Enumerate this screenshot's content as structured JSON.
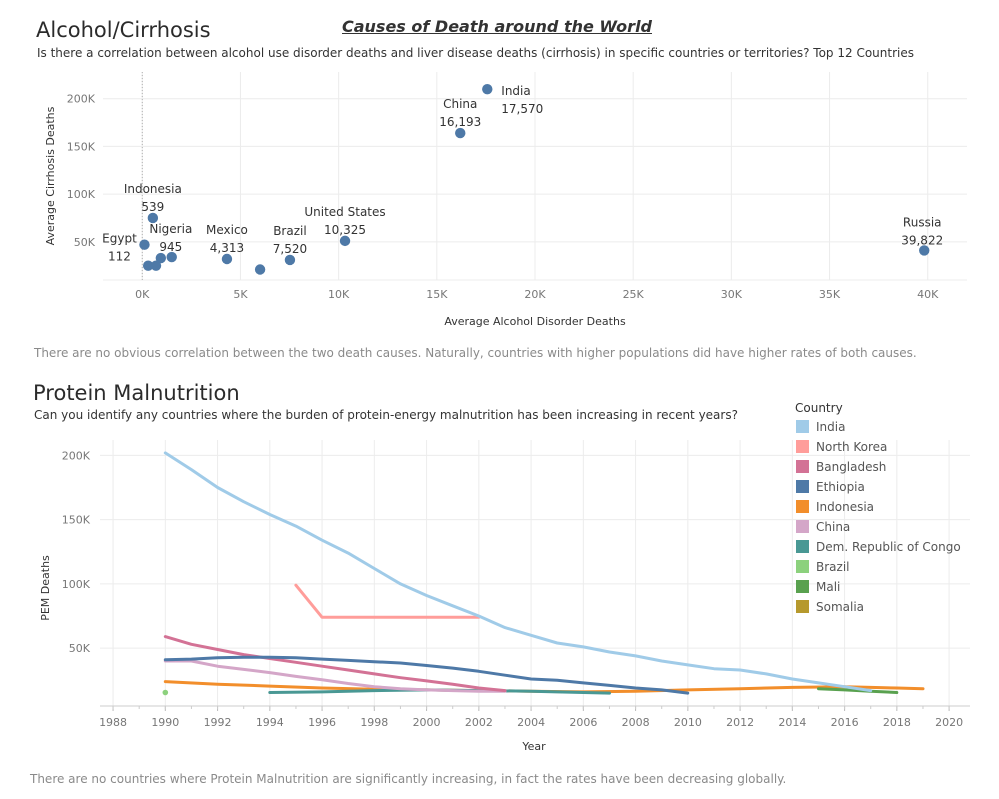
{
  "dashboard_title": "Causes of Death around the World",
  "scatter_section": {
    "title": "Alcohol/Cirrhosis",
    "subtitle": "Is there a correlation between alcohol use disorder deaths and liver disease deaths (cirrhosis) in specific countries or territories? Top 12 Countries",
    "note": "There are no obvious correlation between the two death causes. Naturally, countries with higher populations did have higher rates of both causes."
  },
  "line_section": {
    "title": "Protein Malnutrition",
    "subtitle": "Can you identify any countries where the burden of protein-energy malnutrition has been increasing in recent years?",
    "note": "There are no countries where Protein Malnutrition are significantly increasing, in fact the rates have been decreasing globally.",
    "legend_title": "Country"
  },
  "colors": {
    "scatter_point": "#4e79a7",
    "grid": "#ececec"
  },
  "chart_data": [
    {
      "type": "scatter",
      "xlabel": "Average Alcohol Disorder Deaths",
      "ylabel": "Average Cirrhosis Deaths",
      "xlim": [
        -2000,
        42000
      ],
      "ylim": [
        10000,
        228000
      ],
      "xticks": [
        0,
        5000,
        10000,
        15000,
        20000,
        25000,
        30000,
        35000,
        40000
      ],
      "xtick_labels": [
        "0K",
        "5K",
        "10K",
        "15K",
        "20K",
        "25K",
        "30K",
        "35K",
        "40K"
      ],
      "yticks": [
        50000,
        100000,
        150000,
        200000
      ],
      "ytick_labels": [
        "50K",
        "100K",
        "150K",
        "200K"
      ],
      "points": [
        {
          "name": "India",
          "value_label": "17,570",
          "x": 17570,
          "y": 210000
        },
        {
          "name": "China",
          "value_label": "16,193",
          "x": 16193,
          "y": 164000
        },
        {
          "name": "Russia",
          "value_label": "39,822",
          "x": 39822,
          "y": 41000
        },
        {
          "name": "United States",
          "value_label": "10,325",
          "x": 10325,
          "y": 51000
        },
        {
          "name": "Brazil",
          "value_label": "7,520",
          "x": 7520,
          "y": 31000
        },
        {
          "name": "Mexico",
          "value_label": "4,313",
          "x": 4313,
          "y": 32000
        },
        {
          "name": "Nigeria",
          "value_label": "945",
          "x": 945,
          "y": 33000
        },
        {
          "name": "Indonesia",
          "value_label": "539",
          "x": 539,
          "y": 75000
        },
        {
          "name": "Egypt",
          "value_label": "112",
          "x": 112,
          "y": 47000
        },
        {
          "name": "",
          "value_label": "",
          "x": 300,
          "y": 25000
        },
        {
          "name": "",
          "value_label": "",
          "x": 700,
          "y": 25000
        },
        {
          "name": "",
          "value_label": "",
          "x": 1500,
          "y": 34000
        },
        {
          "name": "",
          "value_label": "",
          "x": 6000,
          "y": 21000
        }
      ]
    },
    {
      "type": "line",
      "xlabel": "Year",
      "ylabel": "PEM Deaths",
      "xlim": [
        1987.5,
        2020.8
      ],
      "ylim": [
        5000,
        212000
      ],
      "xticks": [
        1988,
        1990,
        1992,
        1994,
        1996,
        1998,
        2000,
        2002,
        2004,
        2006,
        2008,
        2010,
        2012,
        2014,
        2016,
        2018,
        2020
      ],
      "yticks": [
        50000,
        100000,
        150000,
        200000
      ],
      "ytick_labels": [
        "50K",
        "100K",
        "150K",
        "200K"
      ],
      "series": [
        {
          "name": "India",
          "color": "#a0cbe8",
          "x": [
            1990,
            1991,
            1992,
            1993,
            1994,
            1995,
            1996,
            1997,
            1998,
            1999,
            2000,
            2001,
            2002,
            2003,
            2004,
            2005,
            2006,
            2007,
            2008,
            2009,
            2010,
            2011,
            2012,
            2013,
            2014,
            2015,
            2016,
            2017
          ],
          "y": [
            202000,
            189000,
            175000,
            164000,
            154000,
            145000,
            134000,
            124000,
            112000,
            100000,
            91000,
            83000,
            75000,
            66000,
            60000,
            54000,
            51000,
            47000,
            44000,
            40000,
            37000,
            34000,
            33000,
            30000,
            26000,
            23000,
            20000,
            17000
          ]
        },
        {
          "name": "North Korea",
          "color": "#ff9d9a",
          "x": [
            1995,
            1996,
            1997,
            1998,
            1999,
            2000,
            2001,
            2002
          ],
          "y": [
            99000,
            74000,
            74000,
            74000,
            74000,
            74000,
            74000,
            74000
          ]
        },
        {
          "name": "Bangladesh",
          "color": "#d37295",
          "x": [
            1990,
            1991,
            1992,
            1993,
            1994,
            1995,
            1996,
            1997,
            1998,
            1999,
            2000,
            2001,
            2002,
            2003
          ],
          "y": [
            59000,
            53000,
            49000,
            45000,
            42000,
            39000,
            36000,
            33000,
            30000,
            27000,
            24500,
            22000,
            19000,
            17000
          ]
        },
        {
          "name": "Ethiopia",
          "color": "#4e79a7",
          "x": [
            1990,
            1991,
            1992,
            1993,
            1994,
            1995,
            1996,
            1997,
            1998,
            1999,
            2000,
            2001,
            2002,
            2003,
            2004,
            2005,
            2006,
            2007,
            2008,
            2009,
            2010
          ],
          "y": [
            41000,
            41500,
            42500,
            43000,
            43000,
            42500,
            41500,
            40500,
            39500,
            38500,
            36500,
            34500,
            32000,
            29000,
            26000,
            25000,
            23000,
            21000,
            19000,
            17500,
            15000
          ]
        },
        {
          "name": "Indonesia",
          "color": "#f28e2b",
          "x": [
            1990,
            1992,
            1994,
            1996,
            1998,
            2000,
            2002,
            2004,
            2006,
            2008,
            2010,
            2012,
            2014,
            2016,
            2017,
            2018,
            2019
          ],
          "y": [
            24000,
            22000,
            20500,
            19000,
            18000,
            17500,
            17000,
            16500,
            16000,
            16500,
            17500,
            18500,
            19500,
            20000,
            19500,
            19000,
            18500
          ]
        },
        {
          "name": "China",
          "color": "#d4a6c8",
          "x": [
            1990,
            1991,
            1992,
            1993,
            1994,
            1995,
            1996,
            1997,
            1998,
            1999,
            2000,
            2001,
            2002,
            2003
          ],
          "y": [
            40000,
            40000,
            36000,
            33500,
            31000,
            28000,
            25500,
            22500,
            20000,
            18500,
            17500,
            17000,
            16500,
            16500
          ]
        },
        {
          "name": "Dem. Republic of Congo",
          "color": "#499894",
          "x": [
            1994,
            1996,
            1998,
            2000,
            2002,
            2004,
            2006,
            2007
          ],
          "y": [
            15500,
            16000,
            17000,
            17500,
            17000,
            16500,
            15500,
            15000
          ]
        },
        {
          "name": "Brazil",
          "color": "#8cd17d",
          "x": [
            1990
          ],
          "y": [
            15500
          ]
        },
        {
          "name": "Mali",
          "color": "#59a14f",
          "x": [
            2015,
            2016,
            2017,
            2018
          ],
          "y": [
            18500,
            17500,
            16500,
            15500
          ]
        },
        {
          "name": "Somalia",
          "color": "#b6992d",
          "x": [],
          "y": []
        }
      ]
    }
  ]
}
